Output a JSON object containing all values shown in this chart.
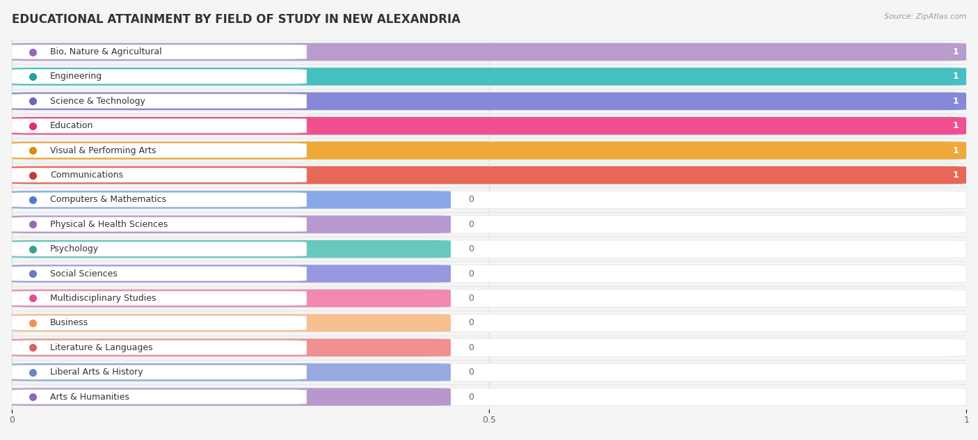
{
  "title": "EDUCATIONAL ATTAINMENT BY FIELD OF STUDY IN NEW ALEXANDRIA",
  "source": "Source: ZipAtlas.com",
  "categories": [
    "Bio, Nature & Agricultural",
    "Engineering",
    "Science & Technology",
    "Education",
    "Visual & Performing Arts",
    "Communications",
    "Computers & Mathematics",
    "Physical & Health Sciences",
    "Psychology",
    "Social Sciences",
    "Multidisciplinary Studies",
    "Business",
    "Literature & Languages",
    "Liberal Arts & History",
    "Arts & Humanities"
  ],
  "values": [
    1,
    1,
    1,
    1,
    1,
    1,
    0,
    0,
    0,
    0,
    0,
    0,
    0,
    0,
    0
  ],
  "bar_colors": [
    "#b89dcc",
    "#45bfbf",
    "#8888d8",
    "#f05090",
    "#f0a838",
    "#e86858",
    "#88a8e8",
    "#b898d0",
    "#68c8c0",
    "#9898e0",
    "#f088b0",
    "#f8c090",
    "#f09090",
    "#98a8e0",
    "#b898cc"
  ],
  "dot_colors": [
    "#9868b8",
    "#20a0a0",
    "#6868c0",
    "#e82870",
    "#e08818",
    "#c83838",
    "#5878d0",
    "#9868b8",
    "#38a098",
    "#6878c8",
    "#e05098",
    "#f09050",
    "#d86068",
    "#6888c8",
    "#9068b8"
  ],
  "zero_bar_width": 0.46,
  "xlim": [
    0,
    1
  ],
  "xticks": [
    0,
    0.5,
    1
  ],
  "background_color": "#f5f5f5",
  "row_bg_color": "#ffffff",
  "separator_color": "#e8e8e8",
  "title_fontsize": 12,
  "label_fontsize": 9,
  "source_fontsize": 8
}
